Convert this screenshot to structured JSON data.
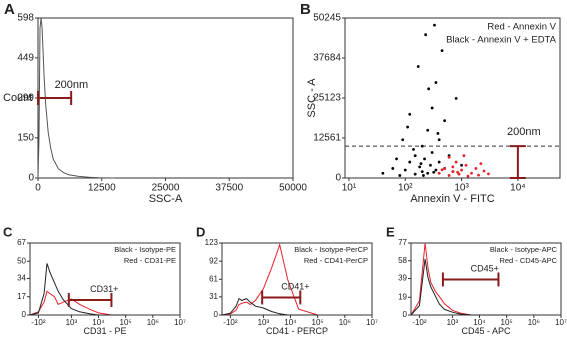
{
  "chart_data": [
    {
      "type": "line",
      "panel_label": "A",
      "x_label": "SSC-A",
      "y_label": "Count",
      "xscale": "linear",
      "xlim": [
        0,
        50000
      ],
      "xticks": [
        0,
        12500,
        25000,
        37500,
        50000
      ],
      "ylim": [
        0,
        598
      ],
      "yticks": [
        0,
        150,
        299,
        449,
        598
      ],
      "series": [
        {
          "color": "#555555",
          "x": [
            0,
            200,
            400,
            600,
            800,
            1000,
            1200,
            1500,
            2000,
            2500,
            3000,
            4000,
            5000,
            6000,
            8000,
            10000,
            12000,
            15000
          ],
          "values": [
            0,
            150,
            560,
            598,
            560,
            470,
            380,
            280,
            170,
            110,
            70,
            35,
            20,
            12,
            6,
            3,
            1,
            0
          ]
        }
      ],
      "gate": {
        "label": "200nm",
        "color": "#8b1a1a",
        "x": [
          0,
          6500
        ],
        "y": 299
      }
    },
    {
      "type": "scatter",
      "panel_label": "B",
      "x_label": "Annexin V - FITC",
      "y_label": "SSC - A",
      "xscale": "log",
      "xlim": [
        8.5,
        56000
      ],
      "xticks": [
        {
          "value": 10,
          "label": "10¹"
        },
        {
          "value": 100,
          "label": "10²"
        },
        {
          "value": 1000,
          "label": "10³"
        },
        {
          "value": 10000,
          "label": "10⁴"
        }
      ],
      "ylim": [
        0,
        50245
      ],
      "yticks": [
        0,
        12561,
        25123,
        37684,
        50245
      ],
      "legend": "upper right",
      "reference_line": 10000,
      "series": [
        {
          "name": "Black - Annexin V + EDTA",
          "color": "#000000",
          "x": [
            40,
            60,
            80,
            100,
            120,
            150,
            150,
            180,
            200,
            200,
            220,
            250,
            250,
            280,
            300,
            300,
            350,
            350,
            400,
            400,
            450,
            500,
            500,
            600,
            700,
            800,
            120,
            90,
            170,
            230,
            330,
            260,
            140,
            190,
            210,
            320,
            70,
            110,
            380,
            1000
          ],
          "values": [
            1500,
            3000,
            800,
            2500,
            5000,
            1200,
            7000,
            3500,
            2000,
            10000,
            6000,
            1500,
            15000,
            4000,
            22000,
            8000,
            2500,
            30000,
            12000,
            5000,
            40000,
            3000,
            18000,
            7000,
            2000,
            25000,
            20000,
            12000,
            35000,
            45000,
            48000,
            28000,
            9000,
            4500,
            800,
            1800,
            6000,
            16000,
            14000,
            4000
          ]
        },
        {
          "name": "Red - Annexin V",
          "color": "#e8202a",
          "x": [
            400,
            500,
            600,
            700,
            800,
            900,
            1000,
            1200,
            1500,
            1800,
            2000,
            2500,
            3000,
            600,
            1100,
            700,
            1300,
            2200,
            450,
            850
          ],
          "values": [
            1500,
            3000,
            800,
            2000,
            5000,
            1200,
            2500,
            4000,
            1500,
            3000,
            900,
            2200,
            1300,
            6500,
            7000,
            3500,
            600,
            4500,
            2600,
            1800
          ]
        }
      ],
      "gate": {
        "label": "200nm",
        "color": "#8b1a1a",
        "x": 10000,
        "y": [
          0,
          10000
        ]
      }
    },
    {
      "type": "line",
      "panel_label": "C",
      "x_label": "CD31 - PE",
      "xscale": "logicle",
      "xlim": [
        -300,
        10000000
      ],
      "xticks": [
        {
          "value": -100,
          "label": "-10²"
        },
        {
          "value": 1000,
          "label": "10³"
        },
        {
          "value": 10000,
          "label": "10⁴"
        },
        {
          "value": 100000,
          "label": "10⁵"
        },
        {
          "value": 1000000,
          "label": "10⁶"
        },
        {
          "value": 10000000,
          "label": "10⁷"
        }
      ],
      "ylim": [
        0,
        67
      ],
      "yticks": [
        0,
        17,
        34,
        50,
        67
      ],
      "legend": "upper right",
      "series": [
        {
          "name": "Red - CD31-PE",
          "color": "#e8202a",
          "x": [
            -300,
            -100,
            0,
            50,
            100,
            200,
            300,
            500,
            1000,
            2000,
            5000,
            10000,
            30000,
            100000
          ],
          "values": [
            0,
            3,
            12,
            22,
            20,
            17,
            10,
            12,
            15,
            10,
            5,
            2,
            0,
            0
          ]
        },
        {
          "name": "Black - Isotype-PE",
          "color": "#222222",
          "x": [
            -300,
            -100,
            0,
            50,
            100,
            200,
            300,
            500,
            1000,
            2000,
            5000,
            10000,
            30000,
            100000
          ],
          "values": [
            0,
            2,
            20,
            48,
            40,
            30,
            22,
            14,
            6,
            3,
            1,
            0,
            0,
            0
          ]
        }
      ],
      "gate": {
        "label": "CD31+",
        "color": "#8b1a1a",
        "x": [
          800,
          30000
        ],
        "y": 14
      }
    },
    {
      "type": "line",
      "panel_label": "D",
      "x_label": "CD41 - PERCP",
      "xscale": "logicle",
      "xlim": [
        -300,
        10000000
      ],
      "xticks": [
        {
          "value": -100,
          "label": "-10²"
        },
        {
          "value": 1000,
          "label": "10³"
        },
        {
          "value": 10000,
          "label": "10⁴"
        },
        {
          "value": 100000,
          "label": "10⁵"
        },
        {
          "value": 1000000,
          "label": "10⁶"
        },
        {
          "value": 10000000,
          "label": "10⁷"
        }
      ],
      "ylim": [
        0,
        123
      ],
      "yticks": [
        0,
        31,
        61,
        92,
        123
      ],
      "legend": "upper right",
      "series": [
        {
          "name": "Red - CD41-PerCP",
          "color": "#e8202a",
          "x": [
            -300,
            -100,
            0,
            50,
            100,
            200,
            300,
            500,
            1000,
            2000,
            4000,
            8000,
            20000,
            100000
          ],
          "values": [
            0,
            2,
            8,
            18,
            20,
            22,
            18,
            25,
            45,
            80,
            120,
            60,
            10,
            0
          ]
        },
        {
          "name": "Black - Isotype-PerCP",
          "color": "#222222",
          "x": [
            -300,
            -100,
            0,
            50,
            100,
            200,
            300,
            500,
            1000,
            2000,
            4000,
            8000,
            20000,
            100000
          ],
          "values": [
            0,
            3,
            15,
            28,
            25,
            28,
            22,
            15,
            12,
            6,
            2,
            0,
            0,
            0
          ]
        }
      ],
      "gate": {
        "label": "CD41+",
        "color": "#8b1a1a",
        "x": [
          900,
          23000
        ],
        "y": 30
      }
    },
    {
      "type": "line",
      "panel_label": "E",
      "x_label": "CD45 - APC",
      "xscale": "logicle",
      "xlim": [
        -300,
        10000000
      ],
      "xticks": [
        {
          "value": -100,
          "label": "-10²"
        },
        {
          "value": 1000,
          "label": "10³"
        },
        {
          "value": 10000,
          "label": "10⁴"
        },
        {
          "value": 100000,
          "label": "10⁵"
        },
        {
          "value": 1000000,
          "label": "10⁶"
        },
        {
          "value": 10000000,
          "label": "10⁷"
        }
      ],
      "ylim": [
        0,
        77
      ],
      "yticks": [
        0,
        19,
        39,
        58,
        77
      ],
      "legend": "upper right",
      "series": [
        {
          "name": "Red - CD45-APC",
          "color": "#e8202a",
          "x": [
            -300,
            -100,
            0,
            50,
            100,
            200,
            300,
            500,
            1000,
            2000,
            5000,
            10000,
            30000,
            100000
          ],
          "values": [
            0,
            15,
            77,
            50,
            35,
            25,
            20,
            12,
            5,
            2,
            0,
            0,
            0,
            0
          ]
        },
        {
          "name": "Black - Isotype-APC",
          "color": "#222222",
          "x": [
            -300,
            -100,
            0,
            50,
            100,
            200,
            300,
            500,
            1000,
            2000,
            5000,
            10000,
            30000,
            100000
          ],
          "values": [
            0,
            10,
            60,
            40,
            30,
            20,
            12,
            6,
            3,
            1,
            0,
            0,
            0,
            0
          ]
        }
      ],
      "gate": {
        "label": "CD45+",
        "color": "#8b1a1a",
        "x": [
          430,
          50000
        ],
        "y": 38
      }
    }
  ]
}
